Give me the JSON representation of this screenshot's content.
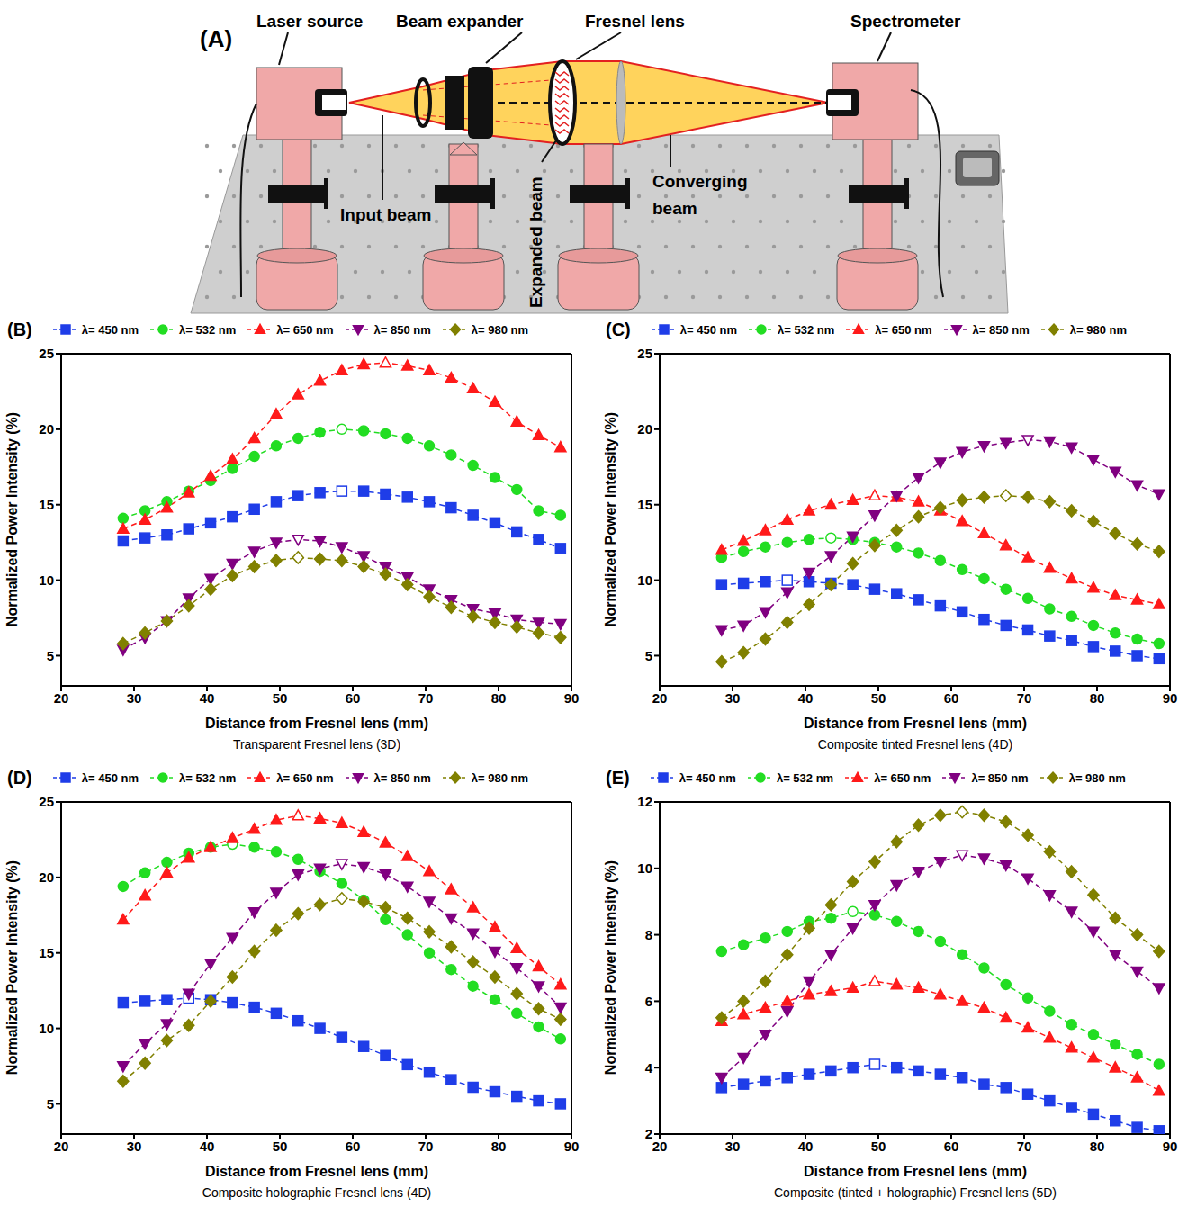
{
  "diagram": {
    "label": "(A)",
    "components": [
      "Laser source",
      "Beam expander",
      "Fresnel lens",
      "Spectrometer"
    ],
    "beams": [
      "Input beam",
      "Expanded beam",
      "Converging beam"
    ]
  },
  "chart_data": [
    {
      "type": "line",
      "title": "(B)",
      "annotation": "Transparent Fresnel lens (3D)",
      "xlabel": "Distance from Fresnel lens (mm)",
      "ylabel": "Normalized Power Intensity (%)",
      "legend": "top",
      "grid": false,
      "line_style": "dashed",
      "x": [
        28.5,
        31.5,
        34.5,
        37.5,
        40.5,
        43.5,
        46.5,
        49.5,
        52.5,
        55.5,
        58.5,
        61.5,
        64.5,
        67.5,
        70.5,
        73.5,
        76.5,
        79.5,
        82.5,
        85.5,
        88.5
      ],
      "xlim": [
        20,
        90
      ],
      "xticks": [
        20,
        30,
        40,
        50,
        60,
        70,
        80,
        90
      ],
      "ylim": [
        3,
        25
      ],
      "yticks": [
        5,
        10,
        15,
        20,
        25
      ],
      "series": [
        {
          "name": "λ= 450 nm",
          "color": "#1f3de8",
          "marker": "square",
          "values": [
            12.6,
            12.8,
            13.0,
            13.4,
            13.8,
            14.2,
            14.7,
            15.2,
            15.6,
            15.8,
            15.9,
            15.9,
            15.7,
            15.5,
            15.2,
            14.8,
            14.3,
            13.8,
            13.2,
            12.7,
            12.1
          ]
        },
        {
          "name": "λ= 532 nm",
          "color": "#22dd22",
          "marker": "circle",
          "values": [
            14.1,
            14.6,
            15.2,
            15.9,
            16.6,
            17.4,
            18.2,
            18.9,
            19.4,
            19.8,
            20.0,
            19.9,
            19.7,
            19.4,
            18.9,
            18.3,
            17.6,
            16.8,
            16.0,
            14.6,
            14.3
          ]
        },
        {
          "name": "λ= 650 nm",
          "color": "#ff1a1a",
          "marker": "triangle",
          "values": [
            13.4,
            14.0,
            14.8,
            15.8,
            16.9,
            18.0,
            19.4,
            21.0,
            22.3,
            23.2,
            23.9,
            24.3,
            24.4,
            24.2,
            23.9,
            23.4,
            22.7,
            21.8,
            20.5,
            19.6,
            18.8
          ]
        },
        {
          "name": "λ= 850 nm",
          "color": "#800080",
          "marker": "triangle-down",
          "values": [
            5.4,
            6.2,
            7.3,
            8.8,
            10.1,
            11.1,
            11.9,
            12.5,
            12.7,
            12.6,
            12.2,
            11.6,
            10.9,
            10.2,
            9.4,
            8.7,
            8.1,
            7.8,
            7.4,
            7.2,
            7.1
          ]
        },
        {
          "name": "λ= 980 nm",
          "color": "#808000",
          "marker": "diamond",
          "values": [
            5.8,
            6.5,
            7.3,
            8.3,
            9.4,
            10.3,
            10.9,
            11.3,
            11.5,
            11.4,
            11.3,
            10.9,
            10.4,
            9.7,
            8.9,
            8.2,
            7.6,
            7.2,
            6.9,
            6.5,
            6.2
          ]
        }
      ]
    },
    {
      "type": "line",
      "title": "(C)",
      "annotation": "Composite tinted Fresnel lens (4D)",
      "xlabel": "Distance from Fresnel lens (mm)",
      "ylabel": "Normalized Power Intensity (%)",
      "legend": "top",
      "grid": false,
      "line_style": "dashed",
      "x": [
        28.5,
        31.5,
        34.5,
        37.5,
        40.5,
        43.5,
        46.5,
        49.5,
        52.5,
        55.5,
        58.5,
        61.5,
        64.5,
        67.5,
        70.5,
        73.5,
        76.5,
        79.5,
        82.5,
        85.5,
        88.5
      ],
      "xlim": [
        20,
        90
      ],
      "xticks": [
        20,
        30,
        40,
        50,
        60,
        70,
        80,
        90
      ],
      "ylim": [
        3,
        25
      ],
      "yticks": [
        5,
        10,
        15,
        20,
        25
      ],
      "series": [
        {
          "name": "λ= 450 nm",
          "color": "#1f3de8",
          "marker": "square",
          "values": [
            9.7,
            9.8,
            9.9,
            10.0,
            9.9,
            9.8,
            9.7,
            9.4,
            9.1,
            8.7,
            8.3,
            7.9,
            7.4,
            7.0,
            6.7,
            6.3,
            6.0,
            5.6,
            5.3,
            5.0,
            4.8
          ]
        },
        {
          "name": "λ= 532 nm",
          "color": "#22dd22",
          "marker": "circle",
          "values": [
            11.5,
            11.9,
            12.2,
            12.5,
            12.7,
            12.8,
            12.7,
            12.5,
            12.2,
            11.8,
            11.3,
            10.7,
            10.1,
            9.4,
            8.8,
            8.1,
            7.6,
            7.0,
            6.5,
            6.1,
            5.8
          ]
        },
        {
          "name": "λ= 650 nm",
          "color": "#ff1a1a",
          "marker": "triangle",
          "values": [
            12.0,
            12.6,
            13.3,
            14.0,
            14.6,
            15.0,
            15.3,
            15.6,
            15.5,
            15.2,
            14.6,
            13.9,
            13.1,
            12.3,
            11.5,
            10.8,
            10.1,
            9.5,
            9.0,
            8.7,
            8.4
          ]
        },
        {
          "name": "λ= 850 nm",
          "color": "#800080",
          "marker": "triangle-down",
          "values": [
            6.7,
            7.0,
            7.9,
            9.2,
            10.5,
            11.6,
            12.9,
            14.3,
            15.6,
            16.8,
            17.8,
            18.5,
            18.9,
            19.1,
            19.3,
            19.2,
            18.8,
            18.0,
            17.2,
            16.3,
            15.7
          ]
        },
        {
          "name": "λ= 980 nm",
          "color": "#808000",
          "marker": "diamond",
          "values": [
            4.6,
            5.2,
            6.1,
            7.2,
            8.4,
            9.7,
            11.1,
            12.3,
            13.3,
            14.2,
            14.8,
            15.3,
            15.5,
            15.6,
            15.5,
            15.2,
            14.6,
            13.9,
            13.1,
            12.4,
            11.9
          ]
        }
      ]
    },
    {
      "type": "line",
      "title": "(D)",
      "annotation": "Composite holographic Fresnel lens (4D)",
      "xlabel": "Distance from Fresnel lens (mm)",
      "ylabel": "Normalized Power Intensity (%)",
      "legend": "top",
      "grid": false,
      "line_style": "dashed",
      "x": [
        28.5,
        31.5,
        34.5,
        37.5,
        40.5,
        43.5,
        46.5,
        49.5,
        52.5,
        55.5,
        58.5,
        61.5,
        64.5,
        67.5,
        70.5,
        73.5,
        76.5,
        79.5,
        82.5,
        85.5,
        88.5
      ],
      "xlim": [
        20,
        90
      ],
      "xticks": [
        20,
        30,
        40,
        50,
        60,
        70,
        80,
        90
      ],
      "ylim": [
        3,
        25
      ],
      "yticks": [
        5,
        10,
        15,
        20,
        25
      ],
      "series": [
        {
          "name": "λ= 450 nm",
          "color": "#1f3de8",
          "marker": "square",
          "values": [
            11.7,
            11.8,
            11.9,
            12.0,
            11.9,
            11.7,
            11.4,
            11.0,
            10.5,
            10.0,
            9.4,
            8.8,
            8.2,
            7.6,
            7.1,
            6.6,
            6.1,
            5.8,
            5.5,
            5.2,
            5.0
          ]
        },
        {
          "name": "λ= 532 nm",
          "color": "#22dd22",
          "marker": "circle",
          "values": [
            19.4,
            20.3,
            21.0,
            21.6,
            22.0,
            22.2,
            22.0,
            21.7,
            21.2,
            20.4,
            19.6,
            18.5,
            17.2,
            16.2,
            15.0,
            13.9,
            12.8,
            11.9,
            11.0,
            10.1,
            9.3
          ]
        },
        {
          "name": "λ= 650 nm",
          "color": "#ff1a1a",
          "marker": "triangle",
          "values": [
            17.2,
            18.8,
            20.3,
            21.3,
            22.0,
            22.6,
            23.2,
            23.8,
            24.1,
            23.9,
            23.6,
            23.0,
            22.3,
            21.4,
            20.4,
            19.2,
            18.0,
            16.7,
            15.3,
            14.1,
            12.9
          ]
        },
        {
          "name": "λ= 850 nm",
          "color": "#800080",
          "marker": "triangle-down",
          "values": [
            7.5,
            9.0,
            10.3,
            12.3,
            14.3,
            16.0,
            17.7,
            19.0,
            20.2,
            20.6,
            20.9,
            20.7,
            20.2,
            19.4,
            18.4,
            17.3,
            16.3,
            15.1,
            14.0,
            12.8,
            11.4
          ]
        },
        {
          "name": "λ= 980 nm",
          "color": "#808000",
          "marker": "diamond",
          "values": [
            6.5,
            7.7,
            9.2,
            10.2,
            11.8,
            13.4,
            15.1,
            16.5,
            17.6,
            18.2,
            18.6,
            18.4,
            18.0,
            17.3,
            16.4,
            15.4,
            14.4,
            13.4,
            12.3,
            11.3,
            10.6
          ]
        }
      ]
    },
    {
      "type": "line",
      "title": "(E)",
      "annotation": "Composite (tinted + holographic)  Fresnel lens (5D)",
      "xlabel": "Distance from Fresnel lens (mm)",
      "ylabel": "Normalized Power Intensity (%)",
      "legend": "top",
      "grid": false,
      "line_style": "dashed",
      "x": [
        28.5,
        31.5,
        34.5,
        37.5,
        40.5,
        43.5,
        46.5,
        49.5,
        52.5,
        55.5,
        58.5,
        61.5,
        64.5,
        67.5,
        70.5,
        73.5,
        76.5,
        79.5,
        82.5,
        85.5,
        88.5
      ],
      "xlim": [
        20,
        90
      ],
      "xticks": [
        20,
        30,
        40,
        50,
        60,
        70,
        80,
        90
      ],
      "ylim": [
        2,
        12
      ],
      "yticks": [
        2,
        4,
        6,
        8,
        10,
        12
      ],
      "series": [
        {
          "name": "λ= 450 nm",
          "color": "#1f3de8",
          "marker": "square",
          "values": [
            3.4,
            3.5,
            3.6,
            3.7,
            3.8,
            3.9,
            4.0,
            4.1,
            4.0,
            3.9,
            3.8,
            3.7,
            3.5,
            3.4,
            3.2,
            3.0,
            2.8,
            2.6,
            2.4,
            2.2,
            2.1
          ]
        },
        {
          "name": "λ= 532 nm",
          "color": "#22dd22",
          "marker": "circle",
          "values": [
            7.5,
            7.7,
            7.9,
            8.1,
            8.4,
            8.5,
            8.7,
            8.6,
            8.4,
            8.1,
            7.8,
            7.4,
            7.0,
            6.5,
            6.1,
            5.7,
            5.3,
            5.0,
            4.7,
            4.4,
            4.1
          ]
        },
        {
          "name": "λ= 650 nm",
          "color": "#ff1a1a",
          "marker": "triangle",
          "values": [
            5.4,
            5.6,
            5.8,
            6.0,
            6.2,
            6.3,
            6.4,
            6.6,
            6.5,
            6.4,
            6.2,
            6.0,
            5.8,
            5.5,
            5.2,
            4.9,
            4.6,
            4.3,
            4.0,
            3.7,
            3.3
          ]
        },
        {
          "name": "λ= 850 nm",
          "color": "#800080",
          "marker": "triangle-down",
          "values": [
            3.7,
            4.3,
            5.0,
            5.7,
            6.6,
            7.4,
            8.2,
            8.9,
            9.5,
            9.9,
            10.2,
            10.4,
            10.3,
            10.1,
            9.7,
            9.2,
            8.7,
            8.1,
            7.4,
            6.9,
            6.4
          ]
        },
        {
          "name": "λ= 980 nm",
          "color": "#808000",
          "marker": "diamond",
          "values": [
            5.5,
            6.0,
            6.6,
            7.4,
            8.2,
            8.9,
            9.6,
            10.2,
            10.8,
            11.3,
            11.6,
            11.7,
            11.6,
            11.4,
            11.0,
            10.5,
            9.9,
            9.2,
            8.5,
            8.0,
            7.5
          ]
        }
      ]
    }
  ]
}
